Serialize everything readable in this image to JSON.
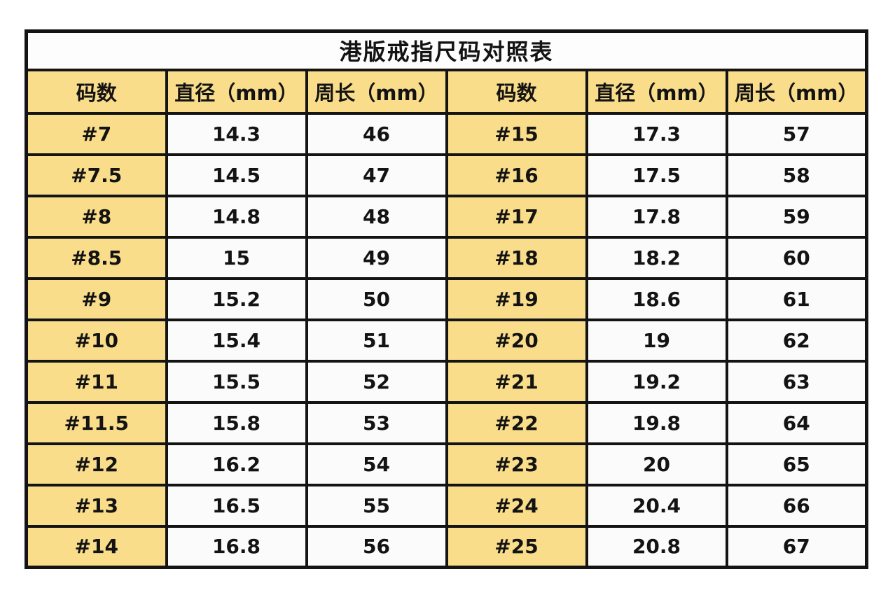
{
  "chart_data": {
    "type": "table",
    "title": "港版戒指尺码对照表",
    "columns": [
      "码数",
      "直径（mm）",
      "周长（mm）",
      "码数",
      "直径（mm）",
      "周长（mm）"
    ],
    "rows": [
      [
        "#7",
        "14.3",
        "46",
        "#15",
        "17.3",
        "57"
      ],
      [
        "#7.5",
        "14.5",
        "47",
        "#16",
        "17.5",
        "58"
      ],
      [
        "#8",
        "14.8",
        "48",
        "#17",
        "17.8",
        "59"
      ],
      [
        "#8.5",
        "15",
        "49",
        "#18",
        "18.2",
        "60"
      ],
      [
        "#9",
        "15.2",
        "50",
        "#19",
        "18.6",
        "61"
      ],
      [
        "#10",
        "15.4",
        "51",
        "#20",
        "19",
        "62"
      ],
      [
        "#11",
        "15.5",
        "52",
        "#21",
        "19.2",
        "63"
      ],
      [
        "#11.5",
        "15.8",
        "53",
        "#22",
        "19.8",
        "64"
      ],
      [
        "#12",
        "16.2",
        "54",
        "#23",
        "20",
        "65"
      ],
      [
        "#13",
        "16.5",
        "55",
        "#24",
        "20.4",
        "66"
      ],
      [
        "#14",
        "16.8",
        "56",
        "#25",
        "20.8",
        "67"
      ]
    ],
    "size_column_indexes": [
      0,
      3
    ],
    "colors": {
      "header_bg": "#F9DD8A",
      "size_cell_bg": "#F9DD8A",
      "value_cell_bg": "#FBFBFB",
      "grid_border": "#141414",
      "text": "#131313",
      "page_bg": "#ffffff"
    },
    "layout": {
      "column_count": 6,
      "data_row_count": 11,
      "grid": "on",
      "title_position": "top-center"
    }
  }
}
